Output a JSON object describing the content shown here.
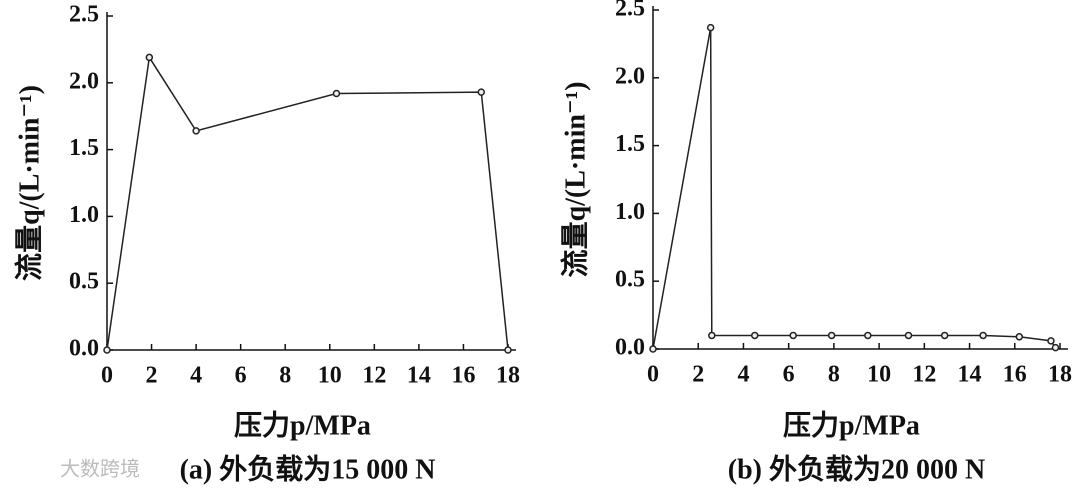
{
  "chart_data": [
    {
      "type": "line",
      "x_label": "压力p/MPa",
      "y_label": "流量q/(L·min⁻¹)",
      "caption": "(a) 外负载为15 000 N",
      "series": [
        {
          "color": "#222222",
          "x": [
            0,
            1.9,
            4,
            10.3,
            16.8,
            18
          ],
          "values": [
            0,
            2.19,
            1.64,
            1.92,
            1.93,
            0
          ]
        }
      ],
      "xlim": [
        0,
        18
      ],
      "xticks": [
        0,
        2,
        4,
        6,
        8,
        10,
        12,
        14,
        16,
        18
      ],
      "ylim": [
        0,
        2.5
      ],
      "yticks": [
        {
          "value": 0,
          "label": "0.0"
        },
        {
          "value": 0.5,
          "label": "0.5"
        },
        {
          "value": 1,
          "label": "1.0"
        },
        {
          "value": 1.5,
          "label": "1.5"
        },
        {
          "value": 2,
          "label": "2.0"
        },
        {
          "value": 2.5,
          "label": "2.5"
        }
      ]
    },
    {
      "type": "line",
      "x_label": "压力p/MPa",
      "y_label": "流量q/(L·min⁻¹)",
      "caption": "(b) 外负载为20 000 N",
      "series": [
        {
          "color": "#222222",
          "x": [
            0,
            2.55,
            2.6,
            4.5,
            6.2,
            7.9,
            9.5,
            11.3,
            12.9,
            14.6,
            16.2,
            17.6,
            17.8
          ],
          "values": [
            0,
            2.37,
            0.1,
            0.1,
            0.1,
            0.1,
            0.1,
            0.1,
            0.1,
            0.1,
            0.09,
            0.06,
            0.01
          ]
        }
      ],
      "xlim": [
        0,
        18
      ],
      "xticks": [
        0,
        2,
        4,
        6,
        8,
        10,
        12,
        14,
        16,
        18
      ],
      "ylim": [
        0,
        2.5
      ],
      "yticks": [
        {
          "value": 0,
          "label": "0.0"
        },
        {
          "value": 0.5,
          "label": "0.5"
        },
        {
          "value": 1,
          "label": "1.0"
        },
        {
          "value": 1.5,
          "label": "1.5"
        },
        {
          "value": 2,
          "label": "2.0"
        },
        {
          "value": 2.5,
          "label": "2.5"
        }
      ]
    }
  ],
  "watermark": "大数跨境"
}
